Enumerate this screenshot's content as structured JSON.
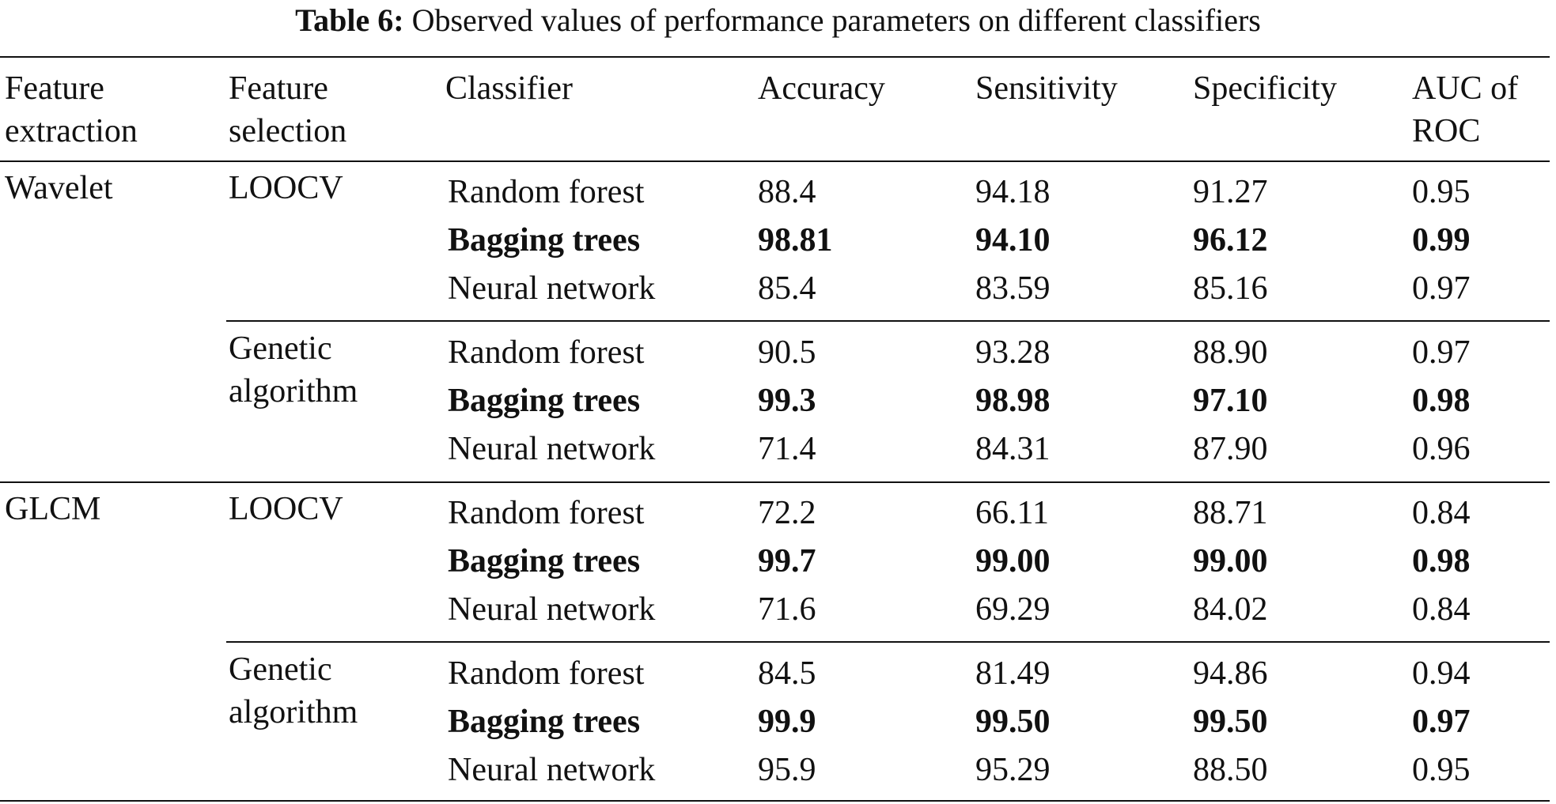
{
  "caption": {
    "label": "Table 6:",
    "text": "Observed values of performance parameters on different classifiers"
  },
  "header": {
    "feature_extraction_1": "Feature",
    "feature_extraction_2": "extraction",
    "feature_selection_1": "Feature",
    "feature_selection_2": "selection",
    "classifier": "Classifier",
    "accuracy": "Accuracy",
    "sensitivity": "Sensitivity",
    "specificity": "Specificity",
    "auc_1": "AUC of",
    "auc_2": "ROC"
  },
  "groups": [
    {
      "extraction": "Wavelet",
      "subgroups": [
        {
          "selection_1": "LOOCV",
          "selection_2": "",
          "rows": [
            {
              "classifier": "Random forest",
              "accuracy": "88.4",
              "sensitivity": "94.18",
              "specificity": "91.27",
              "auc": "0.95",
              "bold": false
            },
            {
              "classifier": "Bagging trees",
              "accuracy": "98.81",
              "sensitivity": "94.10",
              "specificity": "96.12",
              "auc": "0.99",
              "bold": true
            },
            {
              "classifier": "Neural network",
              "accuracy": "85.4",
              "sensitivity": "83.59",
              "specificity": "85.16",
              "auc": "0.97",
              "bold": false
            }
          ]
        },
        {
          "selection_1": "Genetic",
          "selection_2": "algorithm",
          "rows": [
            {
              "classifier": "Random forest",
              "accuracy": "90.5",
              "sensitivity": "93.28",
              "specificity": "88.90",
              "auc": "0.97",
              "bold": false
            },
            {
              "classifier": "Bagging trees",
              "accuracy": "99.3",
              "sensitivity": "98.98",
              "specificity": "97.10",
              "auc": "0.98",
              "bold": true
            },
            {
              "classifier": "Neural network",
              "accuracy": "71.4",
              "sensitivity": "84.31",
              "specificity": "87.90",
              "auc": "0.96",
              "bold": false
            }
          ]
        }
      ]
    },
    {
      "extraction": "GLCM",
      "subgroups": [
        {
          "selection_1": "LOOCV",
          "selection_2": "",
          "rows": [
            {
              "classifier": "Random forest",
              "accuracy": "72.2",
              "sensitivity": "66.11",
              "specificity": "88.71",
              "auc": "0.84",
              "bold": false
            },
            {
              "classifier": "Bagging trees",
              "accuracy": "99.7",
              "sensitivity": "99.00",
              "specificity": "99.00",
              "auc": "0.98",
              "bold": true
            },
            {
              "classifier": "Neural network",
              "accuracy": "71.6",
              "sensitivity": "69.29",
              "specificity": "84.02",
              "auc": "0.84",
              "bold": false
            }
          ]
        },
        {
          "selection_1": "Genetic",
          "selection_2": "algorithm",
          "rows": [
            {
              "classifier": "Random forest",
              "accuracy": "84.5",
              "sensitivity": "81.49",
              "specificity": "94.86",
              "auc": "0.94",
              "bold": false
            },
            {
              "classifier": "Bagging trees",
              "accuracy": "99.9",
              "sensitivity": "99.50",
              "specificity": "99.50",
              "auc": "0.97",
              "bold": true
            },
            {
              "classifier": "Neural network",
              "accuracy": "95.9",
              "sensitivity": "95.29",
              "specificity": "88.50",
              "auc": "0.95",
              "bold": false
            }
          ]
        }
      ]
    }
  ]
}
